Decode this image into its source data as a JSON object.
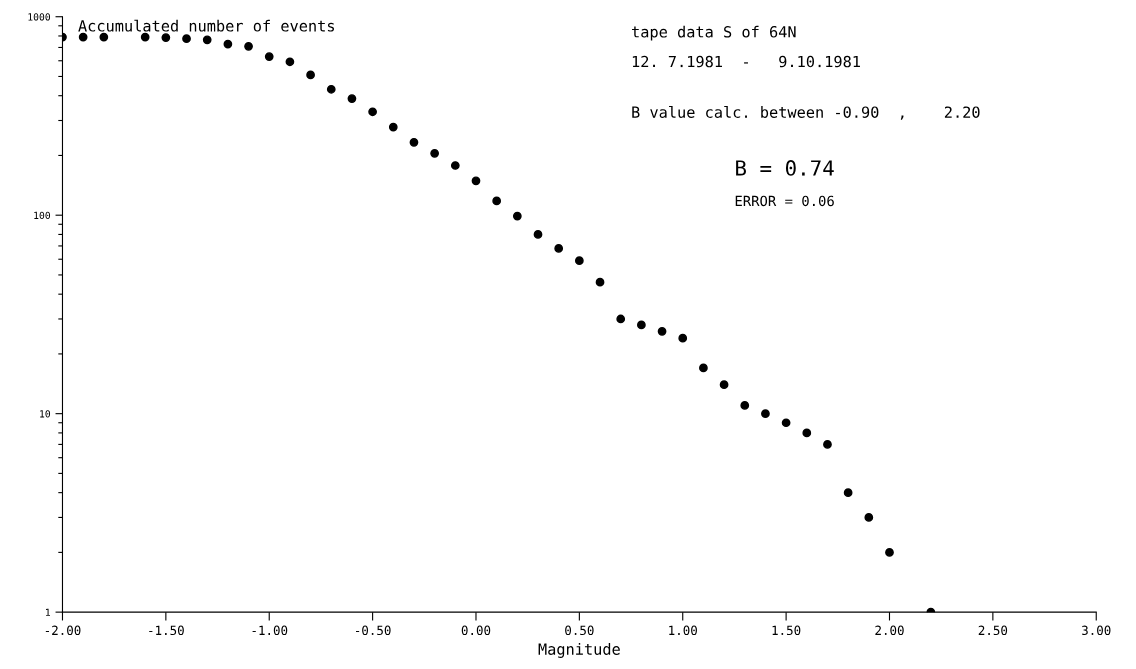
{
  "chart_data": {
    "type": "scatter",
    "xlabel": "Magnitude",
    "annotations": [
      "Accumulated number of events",
      "tape data S of 64N",
      "12. 7.1981  -   9.10.1981",
      "B value calc. between -0.90  ,    2.20",
      "B = 0.74",
      "ERROR = 0.06"
    ],
    "x": [
      -2.0,
      -1.9,
      -1.8,
      -1.6,
      -1.5,
      -1.4,
      -1.3,
      -1.2,
      -1.1,
      -1.0,
      -0.9,
      -0.8,
      -0.7,
      -0.6,
      -0.5,
      -0.4,
      -0.3,
      -0.2,
      -0.1,
      0.0,
      0.1,
      0.2,
      0.3,
      0.4,
      0.5,
      0.6,
      0.7,
      0.8,
      0.9,
      1.0,
      1.1,
      1.2,
      1.3,
      1.4,
      1.5,
      1.6,
      1.7,
      1.8,
      1.9,
      2.0,
      2.2
    ],
    "series": [
      {
        "color": "#000000",
        "values": [
          790,
          790,
          790,
          790,
          785,
          775,
          765,
          728,
          709,
          630,
          593,
          509,
          431,
          387,
          332,
          278,
          233,
          205,
          178,
          149,
          118,
          99,
          80,
          68,
          59,
          46,
          30,
          28,
          26,
          24,
          17,
          14,
          11,
          10,
          9,
          8,
          7,
          4,
          3,
          2,
          1
        ]
      }
    ],
    "marker": "circle",
    "log": "y",
    "grid": false,
    "legend": false,
    "xlim": [
      -2,
      3
    ],
    "ylim": [
      1,
      1000
    ],
    "xticks": [
      {
        "value": -2,
        "label": "-2.00"
      },
      {
        "value": -1.5,
        "label": "-1.50"
      },
      {
        "value": -1,
        "label": "-1.00"
      },
      {
        "value": -0.5,
        "label": "-0.50"
      },
      {
        "value": 0,
        "label": "0.00"
      },
      {
        "value": 0.5,
        "label": "0.50"
      },
      {
        "value": 1,
        "label": "1.00"
      },
      {
        "value": 1.5,
        "label": "1.50"
      },
      {
        "value": 2,
        "label": "2.00"
      },
      {
        "value": 2.5,
        "label": "2.50"
      },
      {
        "value": 3,
        "label": "3.00"
      }
    ],
    "yticks": [
      1,
      {
        "value": 2,
        "label": null
      },
      {
        "value": 3,
        "label": null
      },
      {
        "value": 4,
        "label": null
      },
      {
        "value": 5,
        "label": null
      },
      {
        "value": 6,
        "label": null
      },
      {
        "value": 7,
        "label": null
      },
      {
        "value": 8,
        "label": null
      },
      {
        "value": 9,
        "label": null
      },
      10,
      {
        "value": 20,
        "label": null
      },
      {
        "value": 30,
        "label": null
      },
      {
        "value": 40,
        "label": null
      },
      {
        "value": 50,
        "label": null
      },
      {
        "value": 60,
        "label": null
      },
      {
        "value": 70,
        "label": null
      },
      {
        "value": 80,
        "label": null
      },
      {
        "value": 90,
        "label": null
      },
      100,
      {
        "value": 200,
        "label": null
      },
      {
        "value": 300,
        "label": null
      },
      {
        "value": 400,
        "label": null
      },
      {
        "value": 500,
        "label": null
      },
      {
        "value": 600,
        "label": null
      },
      {
        "value": 700,
        "label": null
      },
      {
        "value": 800,
        "label": null
      },
      {
        "value": 900,
        "label": null
      },
      1000
    ]
  }
}
